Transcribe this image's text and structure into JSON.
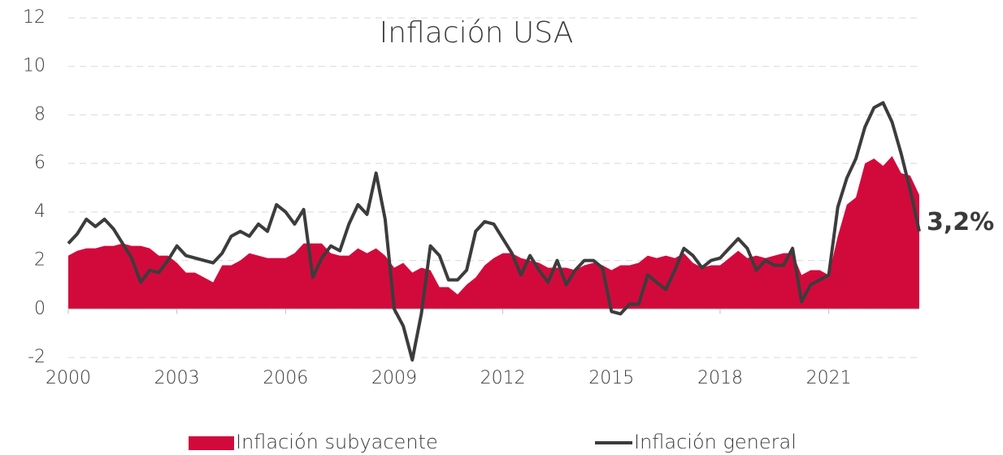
{
  "chart_data": {
    "type": "line",
    "title": "Inflación USA",
    "x": [
      2000,
      2000.25,
      2000.5,
      2000.75,
      2001,
      2001.25,
      2001.5,
      2001.75,
      2002,
      2002.25,
      2002.5,
      2002.75,
      2003,
      2003.25,
      2003.5,
      2003.75,
      2004,
      2004.25,
      2004.5,
      2004.75,
      2005,
      2005.25,
      2005.5,
      2005.75,
      2006,
      2006.25,
      2006.5,
      2006.75,
      2007,
      2007.25,
      2007.5,
      2007.75,
      2008,
      2008.25,
      2008.5,
      2008.75,
      2009,
      2009.25,
      2009.5,
      2009.75,
      2010,
      2010.25,
      2010.5,
      2010.75,
      2011,
      2011.25,
      2011.5,
      2011.75,
      2012,
      2012.25,
      2012.5,
      2012.75,
      2013,
      2013.25,
      2013.5,
      2013.75,
      2014,
      2014.25,
      2014.5,
      2014.75,
      2015,
      2015.25,
      2015.5,
      2015.75,
      2016,
      2016.25,
      2016.5,
      2016.75,
      2017,
      2017.25,
      2017.5,
      2017.75,
      2018,
      2018.25,
      2018.5,
      2018.75,
      2019,
      2019.25,
      2019.5,
      2019.75,
      2020,
      2020.25,
      2020.5,
      2020.75,
      2021,
      2021.25,
      2021.5,
      2021.75,
      2022,
      2022.25,
      2022.5,
      2022.75,
      2023,
      2023.25,
      2023.5
    ],
    "series": [
      {
        "name": "Inflación subyacente",
        "kind": "area",
        "color": "#d20a3c",
        "values": [
          2.2,
          2.4,
          2.5,
          2.5,
          2.6,
          2.6,
          2.7,
          2.6,
          2.6,
          2.5,
          2.2,
          2.2,
          1.9,
          1.5,
          1.5,
          1.3,
          1.1,
          1.8,
          1.8,
          2.0,
          2.3,
          2.2,
          2.1,
          2.1,
          2.1,
          2.3,
          2.7,
          2.7,
          2.7,
          2.3,
          2.2,
          2.2,
          2.5,
          2.3,
          2.5,
          2.2,
          1.7,
          1.9,
          1.5,
          1.7,
          1.6,
          0.9,
          0.9,
          0.6,
          1.0,
          1.3,
          1.8,
          2.1,
          2.3,
          2.3,
          2.1,
          2.0,
          1.9,
          1.7,
          1.7,
          1.7,
          1.6,
          1.8,
          1.9,
          1.8,
          1.6,
          1.8,
          1.8,
          1.9,
          2.2,
          2.1,
          2.2,
          2.1,
          2.3,
          1.9,
          1.7,
          1.8,
          1.8,
          2.1,
          2.4,
          2.1,
          2.2,
          2.1,
          2.2,
          2.3,
          2.3,
          1.4,
          1.6,
          1.6,
          1.4,
          3.0,
          4.3,
          4.6,
          6.0,
          6.2,
          5.9,
          6.3,
          5.6,
          5.5,
          4.7
        ]
      },
      {
        "name": "Inflación general",
        "kind": "line",
        "color": "#3c3c3c",
        "values": [
          2.7,
          3.1,
          3.7,
          3.4,
          3.7,
          3.3,
          2.7,
          2.1,
          1.1,
          1.6,
          1.5,
          2.0,
          2.6,
          2.2,
          2.1,
          2.0,
          1.9,
          2.3,
          3.0,
          3.2,
          3.0,
          3.5,
          3.2,
          4.3,
          4.0,
          3.5,
          4.1,
          1.3,
          2.1,
          2.6,
          2.4,
          3.5,
          4.3,
          3.9,
          5.6,
          3.7,
          0.0,
          -0.7,
          -2.1,
          -0.2,
          2.6,
          2.2,
          1.2,
          1.2,
          1.6,
          3.2,
          3.6,
          3.5,
          2.9,
          2.3,
          1.4,
          2.2,
          1.6,
          1.1,
          2.0,
          1.0,
          1.6,
          2.0,
          2.0,
          1.7,
          -0.1,
          -0.2,
          0.2,
          0.2,
          1.4,
          1.1,
          0.8,
          1.6,
          2.5,
          2.2,
          1.7,
          2.0,
          2.1,
          2.5,
          2.9,
          2.5,
          1.6,
          2.0,
          1.8,
          1.8,
          2.5,
          0.3,
          1.0,
          1.2,
          1.4,
          4.2,
          5.4,
          6.2,
          7.5,
          8.3,
          8.5,
          7.7,
          6.4,
          4.9,
          3.2
        ]
      }
    ],
    "end_label": {
      "value": 3.2,
      "label": "3,2%"
    },
    "xlim": [
      2000,
      2023.5
    ],
    "xticks": [
      2000,
      2003,
      2006,
      2009,
      2012,
      2015,
      2018,
      2021
    ],
    "ylim": [
      -2,
      12
    ],
    "yticks": [
      -2,
      0,
      2,
      4,
      6,
      8,
      10,
      12
    ],
    "grid": true
  }
}
